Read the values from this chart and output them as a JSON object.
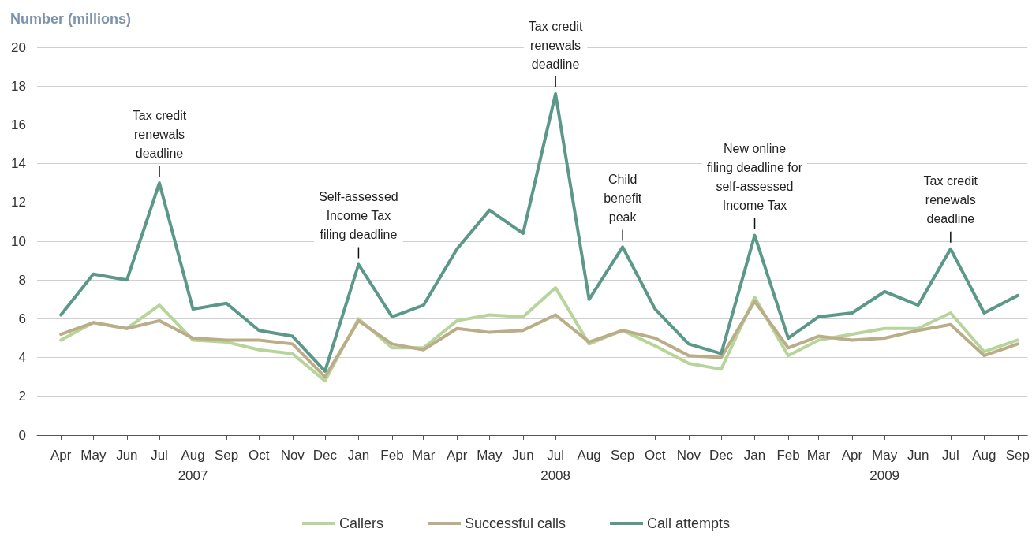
{
  "chart_data": {
    "type": "line",
    "ylabel": "Number (millions)",
    "x": [
      "2007-04",
      "2007-05",
      "2007-06",
      "2007-07",
      "2007-08",
      "2007-09",
      "2007-10",
      "2007-11",
      "2007-12",
      "2008-01",
      "2008-02",
      "2008-03",
      "2008-04",
      "2008-05",
      "2008-06",
      "2008-07",
      "2008-08",
      "2008-09",
      "2008-10",
      "2008-11",
      "2008-12",
      "2009-01",
      "2009-02",
      "2009-03",
      "2009-04",
      "2009-05",
      "2009-06",
      "2009-07",
      "2009-08",
      "2009-09"
    ],
    "xlim": [
      "2007-03-10",
      "2009-09-10"
    ],
    "xticks": [
      {
        "value": "2007-04",
        "label": "Apr"
      },
      {
        "value": "2007-05",
        "label": "May"
      },
      {
        "value": "2007-06",
        "label": "Jun"
      },
      {
        "value": "2007-07",
        "label": "Jul"
      },
      {
        "value": "2007-08",
        "label": "Aug\n2007"
      },
      {
        "value": "2007-09",
        "label": "Sep"
      },
      {
        "value": "2007-10",
        "label": "Oct"
      },
      {
        "value": "2007-11",
        "label": "Nov"
      },
      {
        "value": "2007-12",
        "label": "Dec"
      },
      {
        "value": "2008-01",
        "label": "Jan"
      },
      {
        "value": "2008-02",
        "label": "Feb"
      },
      {
        "value": "2008-03",
        "label": "Mar"
      },
      {
        "value": "2008-04",
        "label": "Apr"
      },
      {
        "value": "2008-05",
        "label": "May"
      },
      {
        "value": "2008-06",
        "label": "Jun"
      },
      {
        "value": "2008-07",
        "label": "Jul\n2008"
      },
      {
        "value": "2008-08",
        "label": "Aug"
      },
      {
        "value": "2008-09",
        "label": "Sep"
      },
      {
        "value": "2008-10",
        "label": "Oct"
      },
      {
        "value": "2008-11",
        "label": "Nov"
      },
      {
        "value": "2008-12",
        "label": "Dec"
      },
      {
        "value": "2009-01",
        "label": "Jan"
      },
      {
        "value": "2009-02",
        "label": "Feb"
      },
      {
        "value": "2009-03",
        "label": "Mar"
      },
      {
        "value": "2009-04",
        "label": "Apr"
      },
      {
        "value": "2009-05",
        "label": "May\n2009"
      },
      {
        "value": "2009-06",
        "label": "Jun"
      },
      {
        "value": "2009-07",
        "label": "Jul"
      },
      {
        "value": "2009-08",
        "label": "Aug"
      },
      {
        "value": "2009-09",
        "label": "Sep"
      }
    ],
    "ylim": [
      0,
      20
    ],
    "yticks": [
      0,
      2,
      4,
      6,
      8,
      10,
      12,
      14,
      16,
      18,
      20
    ],
    "grid": "y",
    "legend": "bottom",
    "marker": "none",
    "line_style": "solid",
    "series": [
      {
        "name": "Callers",
        "color": "#b7d59b",
        "values": [
          4.9,
          5.8,
          5.5,
          6.7,
          4.9,
          4.8,
          4.4,
          4.2,
          2.8,
          6.0,
          4.5,
          4.5,
          5.9,
          6.2,
          6.1,
          7.6,
          4.7,
          5.4,
          4.6,
          3.7,
          3.4,
          7.1,
          4.1,
          4.9,
          5.2,
          5.5,
          5.5,
          6.3,
          4.3,
          4.9
        ]
      },
      {
        "name": "Successful calls",
        "color": "#bcad89",
        "values": [
          5.2,
          5.8,
          5.5,
          5.9,
          5.0,
          4.9,
          4.9,
          4.7,
          3.0,
          5.9,
          4.7,
          4.4,
          5.5,
          5.3,
          5.4,
          6.2,
          4.8,
          5.4,
          5.0,
          4.1,
          4.0,
          6.9,
          4.5,
          5.1,
          4.9,
          5.0,
          5.4,
          5.7,
          4.1,
          4.7
        ]
      },
      {
        "name": "Call attempts",
        "color": "#5b9889",
        "values": [
          6.2,
          8.3,
          8.0,
          13.0,
          6.5,
          6.8,
          5.4,
          5.1,
          3.3,
          8.8,
          6.1,
          6.7,
          9.6,
          11.6,
          10.4,
          17.6,
          7.0,
          9.7,
          6.5,
          4.7,
          4.2,
          10.3,
          5.0,
          6.1,
          6.3,
          7.4,
          6.7,
          9.6,
          6.3,
          7.2
        ]
      }
    ],
    "annotations": [
      {
        "text": "Tax credit\nrenewals\ndeadline",
        "x": "2007-07",
        "y": 13.0
      },
      {
        "text": "Self-assessed\nIncome Tax\nfiling deadline",
        "x": "2008-01",
        "y": 8.8
      },
      {
        "text": "Tax credit\nrenewals\ndeadline",
        "x": "2008-07",
        "y": 17.6
      },
      {
        "text": "Child\nbenefit\npeak",
        "x": "2008-09",
        "y": 9.7
      },
      {
        "text": "New online\nfiling deadline for\nself-assessed\nIncome Tax",
        "x": "2009-01",
        "y": 10.3
      },
      {
        "text": "Tax credit\nrenewals\ndeadline",
        "x": "2009-07",
        "y": 9.6
      }
    ]
  }
}
